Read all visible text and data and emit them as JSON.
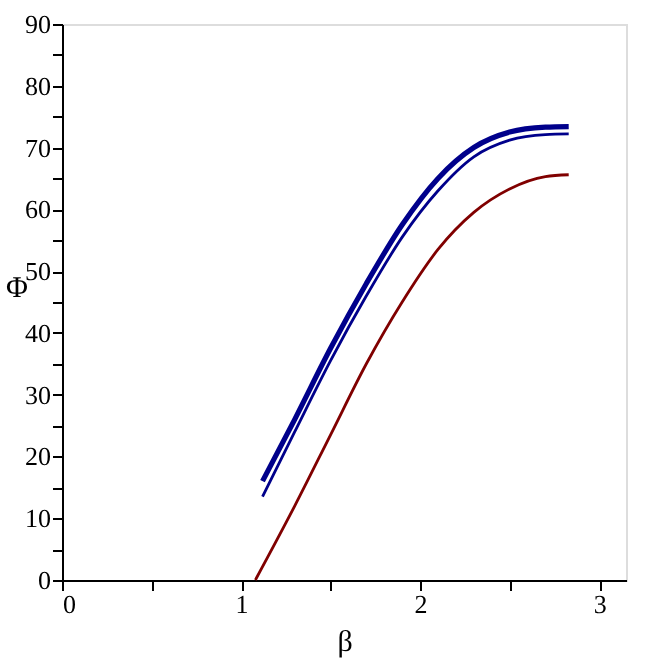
{
  "chart_data": {
    "type": "line",
    "xlabel": "β",
    "ylabel": "Φ",
    "xlim": [
      0,
      3.15
    ],
    "ylim": [
      0,
      90
    ],
    "xticks": [
      0,
      {
        "value": 0.5,
        "label": null
      },
      1,
      {
        "value": 1.5,
        "label": null
      },
      2,
      {
        "value": 2.5,
        "label": null
      },
      3
    ],
    "yticks": [
      0,
      {
        "value": 5,
        "label": null
      },
      10,
      {
        "value": 15,
        "label": null
      },
      20,
      {
        "value": 25,
        "label": null
      },
      30,
      {
        "value": 35,
        "label": null
      },
      40,
      {
        "value": 45,
        "label": null
      },
      50,
      {
        "value": 55,
        "label": null
      },
      60,
      {
        "value": 65,
        "label": null
      },
      70,
      {
        "value": 75,
        "label": null
      },
      80,
      {
        "value": 85,
        "label": null
      },
      90
    ],
    "grid": false,
    "legend": false,
    "marker": "none",
    "line_style": "solid",
    "series": [
      {
        "color": "#00008b",
        "x": [
          1.12,
          1.3,
          1.5,
          1.7,
          1.9,
          2.1,
          2.3,
          2.5,
          2.7,
          2.83
        ],
        "values": [
          16,
          26,
          37.5,
          48,
          57.5,
          65,
          70,
          72.5,
          73.3,
          73.4
        ]
      },
      {
        "color": "#00008b",
        "x": [
          1.12,
          1.3,
          1.5,
          1.7,
          1.9,
          2.1,
          2.3,
          2.5,
          2.7,
          2.83
        ],
        "values": [
          13.5,
          24,
          35.5,
          46,
          55.5,
          63,
          68.5,
          71.2,
          72.1,
          72.2
        ]
      },
      {
        "color": "#800000",
        "x": [
          1.08,
          1.3,
          1.5,
          1.7,
          1.9,
          2.1,
          2.3,
          2.5,
          2.7,
          2.83
        ],
        "values": [
          0,
          12,
          23.5,
          35,
          45,
          53.5,
          59.5,
          63.3,
          65.3,
          65.6
        ]
      }
    ]
  }
}
